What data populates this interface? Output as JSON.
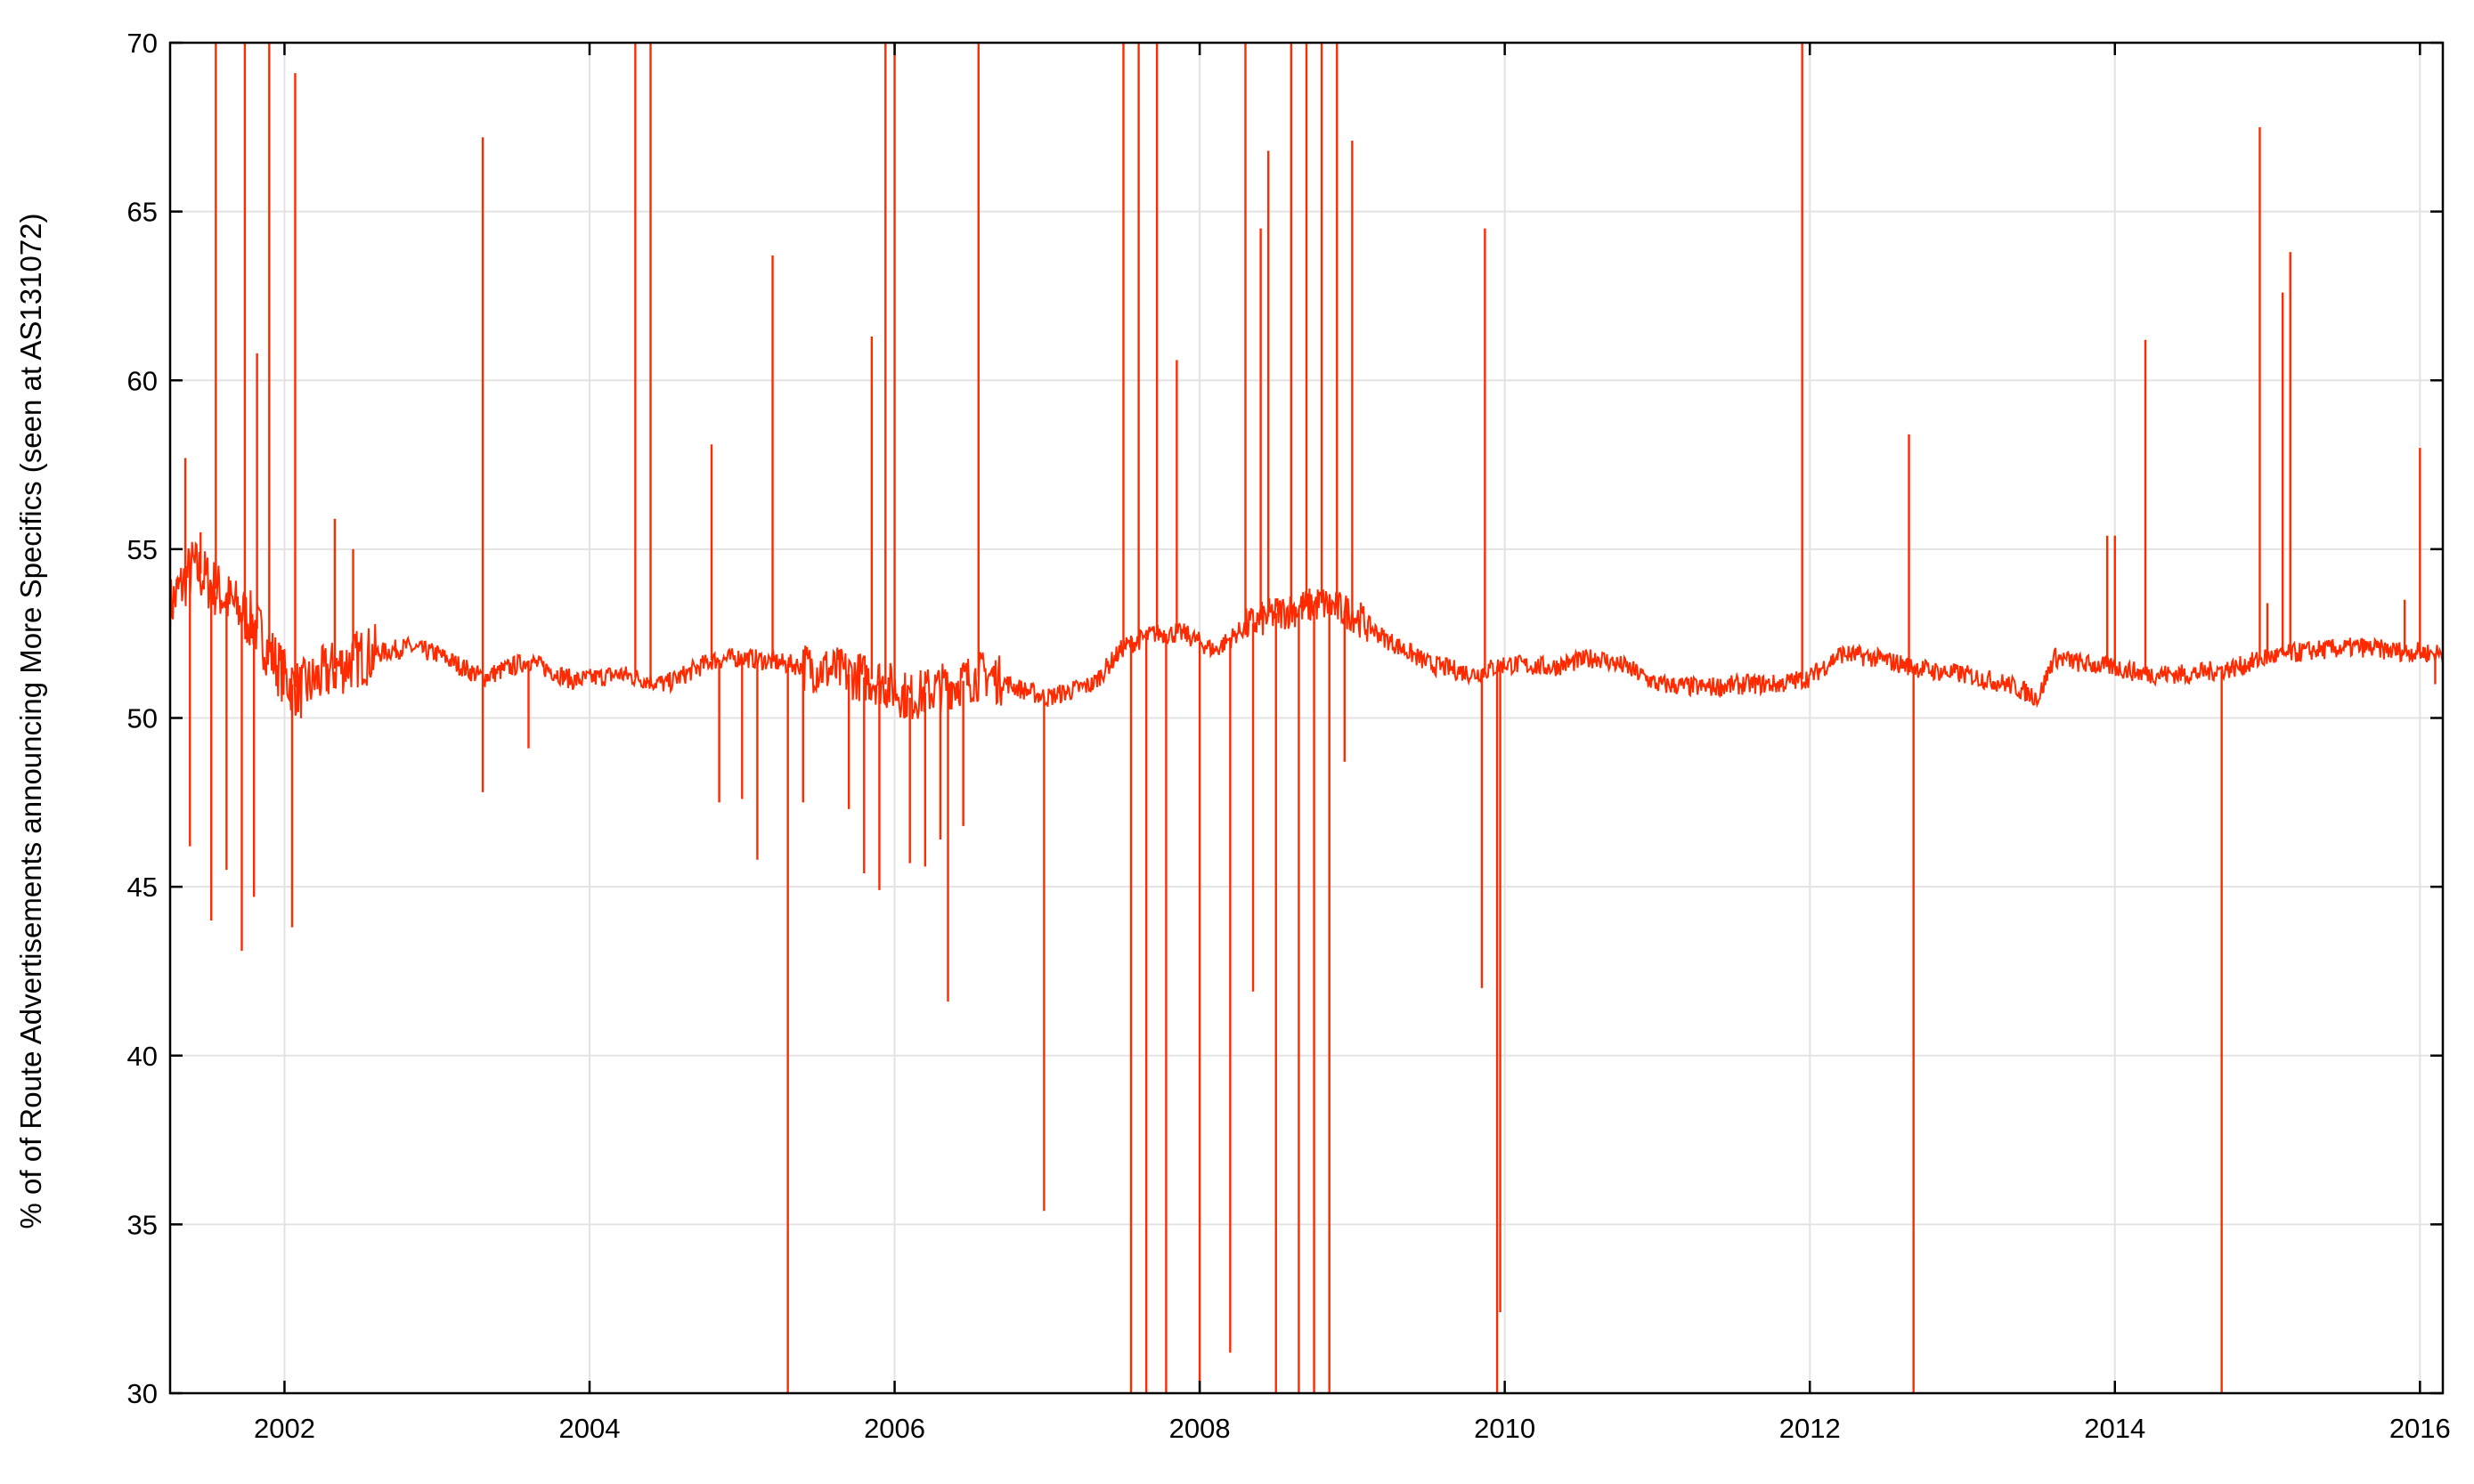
{
  "colors": {
    "series": "#ff2a00",
    "grid": "#e3e3e3",
    "axis": "#000000",
    "background": "#ffffff"
  },
  "chart_data": {
    "type": "line",
    "title": "",
    "xlabel": "",
    "ylabel": "% of of Route Advertisements announcing More Specifics (seen at AS131072)",
    "xlim": [
      2001.25,
      2016.15
    ],
    "ylim": [
      30,
      70
    ],
    "grid": true,
    "x_ticks": [
      2002,
      2004,
      2006,
      2008,
      2010,
      2012,
      2014,
      2016
    ],
    "x_tick_labels": [
      "2002",
      "2004",
      "2006",
      "2008",
      "2010",
      "2012",
      "2014",
      "2016"
    ],
    "y_ticks": [
      30,
      35,
      40,
      45,
      50,
      55,
      60,
      65,
      70
    ],
    "y_tick_labels": [
      "30",
      "35",
      "40",
      "45",
      "50",
      "55",
      "60",
      "65",
      "70"
    ],
    "series": [
      {
        "baseline": [
          [
            2001.25,
            53.3
          ],
          [
            2001.4,
            54.5
          ],
          [
            2001.6,
            53.6
          ],
          [
            2001.8,
            52.8
          ],
          [
            2002.0,
            51.2
          ],
          [
            2002.1,
            50.8
          ],
          [
            2002.3,
            51.4
          ],
          [
            2002.5,
            51.8
          ],
          [
            2002.8,
            52.1
          ],
          [
            2003.0,
            51.9
          ],
          [
            2003.3,
            51.2
          ],
          [
            2003.6,
            51.7
          ],
          [
            2003.9,
            51.1
          ],
          [
            2004.2,
            51.3
          ],
          [
            2004.5,
            51.0
          ],
          [
            2004.8,
            51.7
          ],
          [
            2005.0,
            51.8
          ],
          [
            2005.3,
            51.6
          ],
          [
            2005.6,
            51.4
          ],
          [
            2005.9,
            51.1
          ],
          [
            2006.1,
            50.6
          ],
          [
            2006.3,
            50.9
          ],
          [
            2006.6,
            51.3
          ],
          [
            2006.8,
            50.9
          ],
          [
            2007.0,
            50.6
          ],
          [
            2007.3,
            51.0
          ],
          [
            2007.5,
            52.1
          ],
          [
            2007.7,
            52.5
          ],
          [
            2007.9,
            52.5
          ],
          [
            2008.1,
            52.0
          ],
          [
            2008.3,
            52.7
          ],
          [
            2008.5,
            53.1
          ],
          [
            2008.8,
            53.4
          ],
          [
            2009.0,
            53.1
          ],
          [
            2009.2,
            52.4
          ],
          [
            2009.5,
            51.6
          ],
          [
            2009.8,
            51.3
          ],
          [
            2010.0,
            51.6
          ],
          [
            2010.3,
            51.5
          ],
          [
            2010.6,
            51.8
          ],
          [
            2010.8,
            51.5
          ],
          [
            2011.0,
            51.0
          ],
          [
            2011.3,
            50.9
          ],
          [
            2011.6,
            51.0
          ],
          [
            2011.8,
            51.0
          ],
          [
            2012.0,
            51.2
          ],
          [
            2012.2,
            51.9
          ],
          [
            2012.4,
            51.8
          ],
          [
            2012.6,
            51.6
          ],
          [
            2012.8,
            51.4
          ],
          [
            2013.0,
            51.3
          ],
          [
            2013.3,
            51.0
          ],
          [
            2013.5,
            50.6
          ],
          [
            2013.6,
            51.8
          ],
          [
            2013.8,
            51.6
          ],
          [
            2014.0,
            51.5
          ],
          [
            2014.2,
            51.3
          ],
          [
            2014.5,
            51.3
          ],
          [
            2014.8,
            51.5
          ],
          [
            2015.0,
            51.8
          ],
          [
            2015.3,
            52.0
          ],
          [
            2015.6,
            52.1
          ],
          [
            2015.8,
            52.0
          ],
          [
            2016.15,
            51.9
          ]
        ],
        "spikes": [
          [
            2001.35,
            57.7
          ],
          [
            2001.38,
            46.2
          ],
          [
            2001.45,
            55.5
          ],
          [
            2001.52,
            44.0
          ],
          [
            2001.55,
            70.0
          ],
          [
            2001.62,
            45.5
          ],
          [
            2001.72,
            43.1
          ],
          [
            2001.74,
            70.0
          ],
          [
            2001.8,
            44.7
          ],
          [
            2001.82,
            60.8
          ],
          [
            2001.9,
            70.0
          ],
          [
            2002.05,
            43.8
          ],
          [
            2002.07,
            69.1
          ],
          [
            2002.33,
            55.9
          ],
          [
            2002.45,
            55.0
          ],
          [
            2003.3,
            47.8
          ],
          [
            2003.3,
            67.2
          ],
          [
            2003.6,
            49.1
          ],
          [
            2004.3,
            70.0
          ],
          [
            2004.4,
            70.0
          ],
          [
            2004.8,
            58.1
          ],
          [
            2004.85,
            47.5
          ],
          [
            2005.0,
            47.6
          ],
          [
            2005.1,
            45.8
          ],
          [
            2005.2,
            63.7
          ],
          [
            2005.3,
            30.0
          ],
          [
            2005.4,
            47.5
          ],
          [
            2005.7,
            47.3
          ],
          [
            2005.8,
            45.4
          ],
          [
            2005.85,
            61.3
          ],
          [
            2005.9,
            44.9
          ],
          [
            2005.94,
            70.0
          ],
          [
            2006.0,
            70.0
          ],
          [
            2006.1,
            45.7
          ],
          [
            2006.2,
            45.6
          ],
          [
            2006.3,
            46.4
          ],
          [
            2006.35,
            41.6
          ],
          [
            2006.45,
            46.8
          ],
          [
            2006.55,
            70.0
          ],
          [
            2006.98,
            35.4
          ],
          [
            2007.5,
            70.0
          ],
          [
            2007.55,
            30.0
          ],
          [
            2007.6,
            70.0
          ],
          [
            2007.65,
            30.0
          ],
          [
            2007.72,
            70.0
          ],
          [
            2007.78,
            30.0
          ],
          [
            2007.85,
            60.6
          ],
          [
            2008.0,
            30.0
          ],
          [
            2008.2,
            31.2
          ],
          [
            2008.3,
            70.0
          ],
          [
            2008.35,
            41.9
          ],
          [
            2008.4,
            64.5
          ],
          [
            2008.45,
            66.8
          ],
          [
            2008.5,
            30.0
          ],
          [
            2008.6,
            70.0
          ],
          [
            2008.65,
            30.0
          ],
          [
            2008.7,
            70.0
          ],
          [
            2008.75,
            30.0
          ],
          [
            2008.8,
            70.0
          ],
          [
            2008.85,
            30.0
          ],
          [
            2008.9,
            70.0
          ],
          [
            2008.95,
            48.7
          ],
          [
            2009.0,
            67.1
          ],
          [
            2009.85,
            42.0
          ],
          [
            2009.87,
            64.5
          ],
          [
            2009.95,
            30.0
          ],
          [
            2009.97,
            32.4
          ],
          [
            2011.95,
            70.0
          ],
          [
            2012.65,
            58.4
          ],
          [
            2012.68,
            30.0
          ],
          [
            2013.95,
            55.4
          ],
          [
            2014.0,
            55.4
          ],
          [
            2014.2,
            61.2
          ],
          [
            2014.7,
            30.0
          ],
          [
            2014.95,
            67.5
          ],
          [
            2015.0,
            53.4
          ],
          [
            2015.1,
            62.6
          ],
          [
            2015.15,
            63.8
          ],
          [
            2015.9,
            53.5
          ],
          [
            2016.0,
            58.0
          ],
          [
            2016.1,
            51.0
          ]
        ]
      }
    ]
  }
}
